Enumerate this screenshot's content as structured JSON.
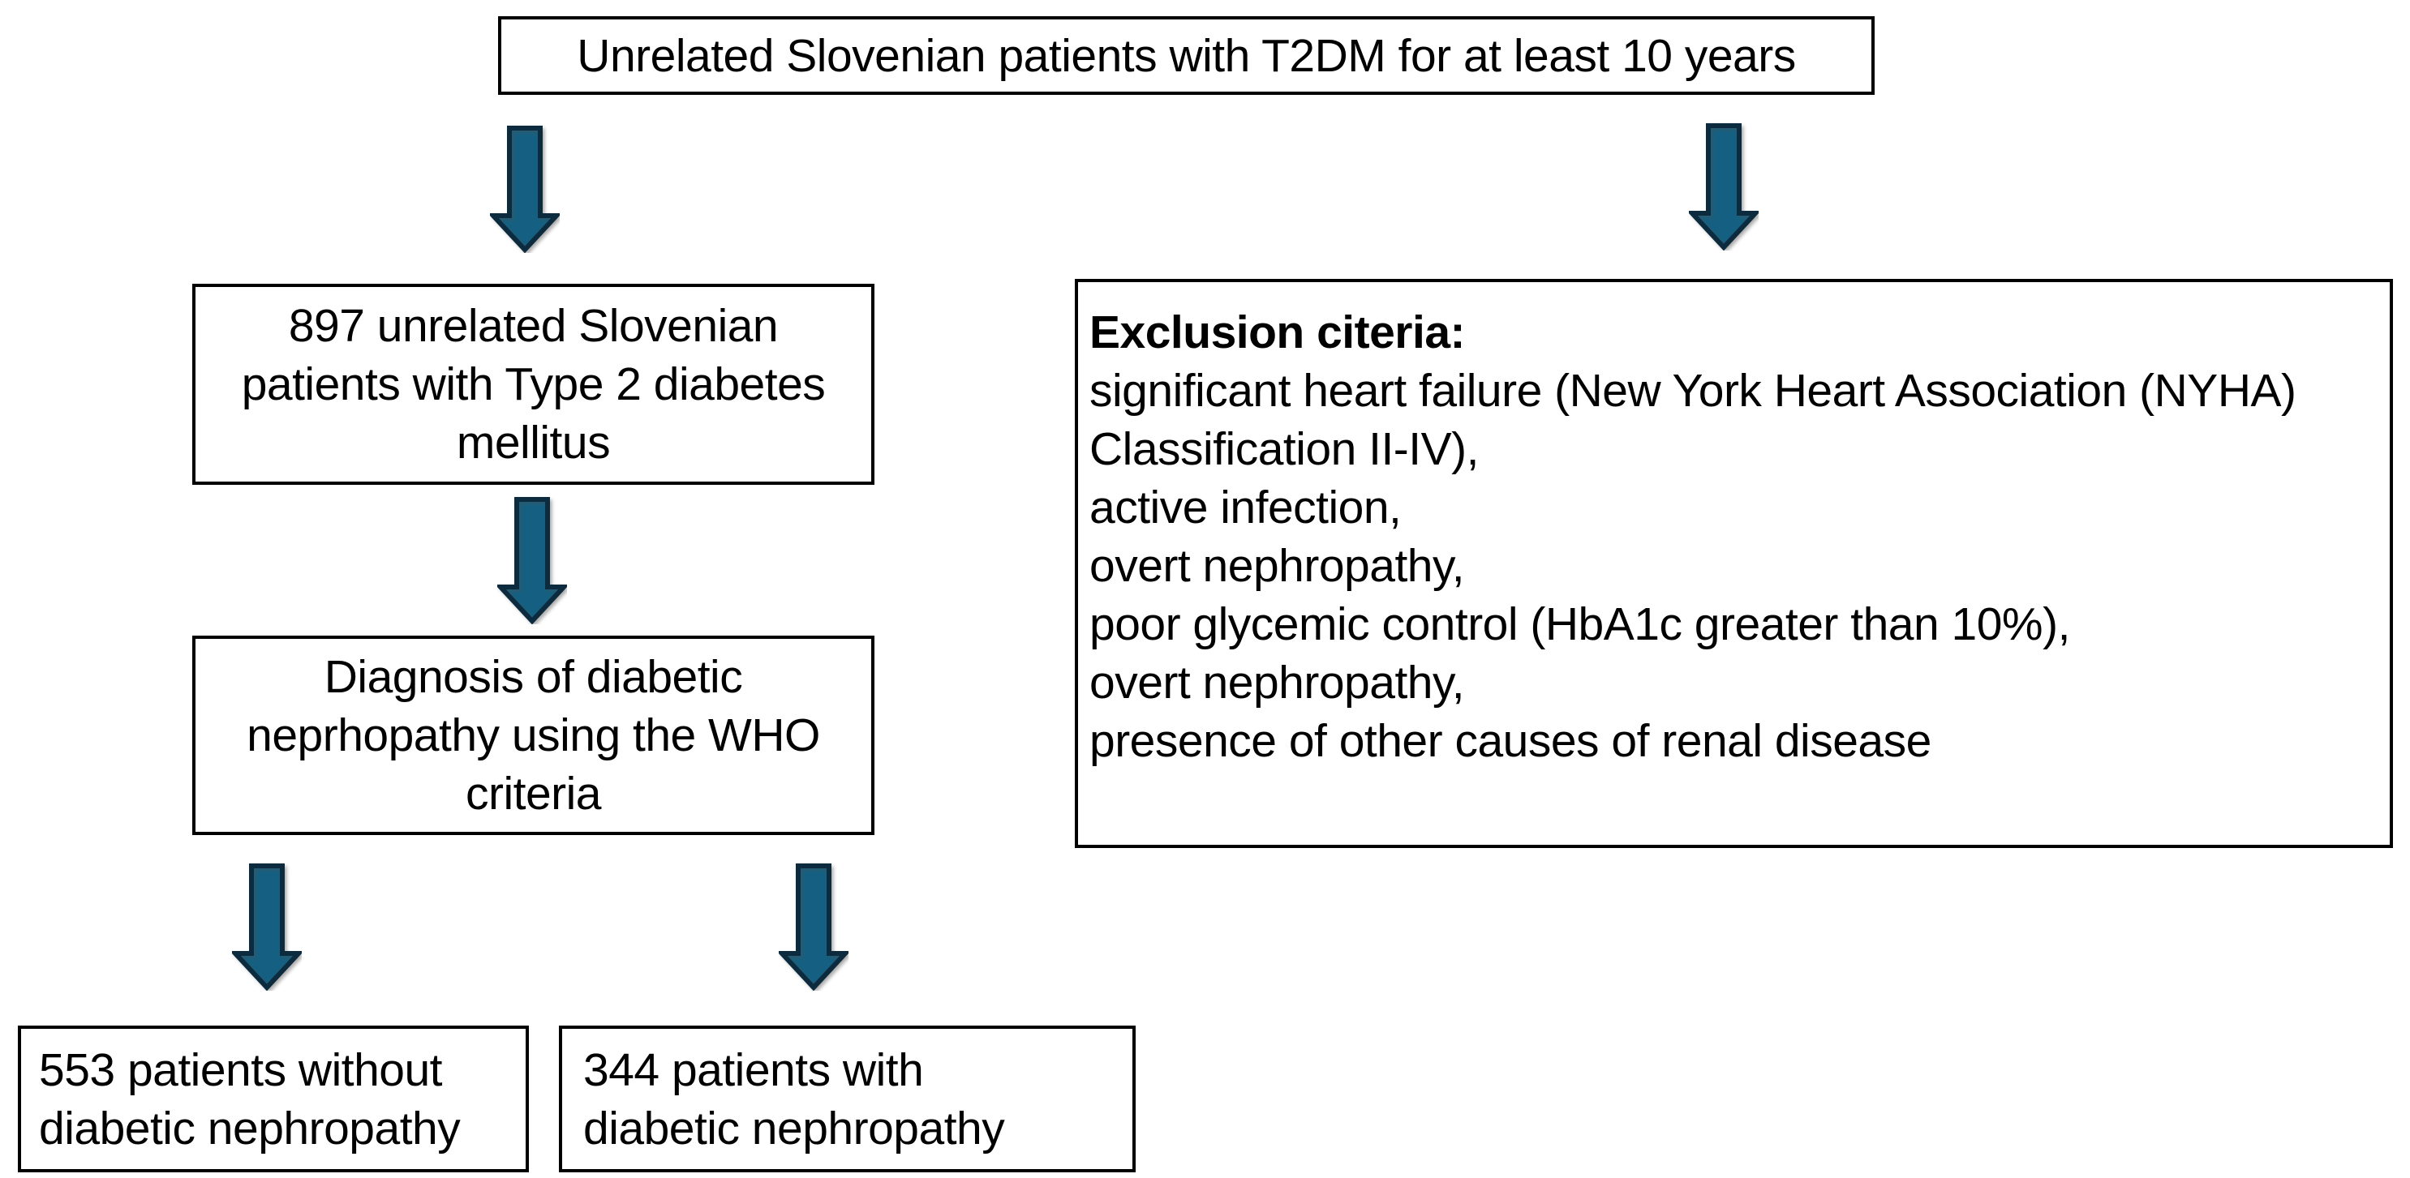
{
  "colors": {
    "background": "#ffffff",
    "box_border": "#000000",
    "text": "#000000",
    "arrow_fill": "#156082",
    "arrow_stroke": "#0d2b3e"
  },
  "flowchart": {
    "source": {
      "text": "Unrelated Slovenian patients with T2DM for at least 10 years"
    },
    "cohort": {
      "text": "897 unrelated Slovenian\npatients with Type 2 diabetes\nmellitus"
    },
    "exclusion": {
      "heading": "Exclusion citeria:",
      "items": [
        "significant heart failure (New York Heart Association (NYHA)\nClassification II-IV),",
        "active infection,",
        "overt nephropathy,",
        "poor glycemic control (HbA1c greater than 10%),",
        "overt nephropathy,",
        "presence of other causes of renal disease"
      ]
    },
    "diagnosis": {
      "text": "Diagnosis of diabetic\nneprhopathy using the WHO\ncriteria"
    },
    "without_dn": {
      "text": "553 patients without\ndiabetic nephropathy"
    },
    "with_dn": {
      "text": "344 patients with\ndiabetic nephropathy"
    },
    "arrows": [
      "source-to-cohort",
      "source-to-exclusion",
      "cohort-to-diagnosis",
      "diagnosis-to-without-dn",
      "diagnosis-to-with-dn"
    ]
  }
}
